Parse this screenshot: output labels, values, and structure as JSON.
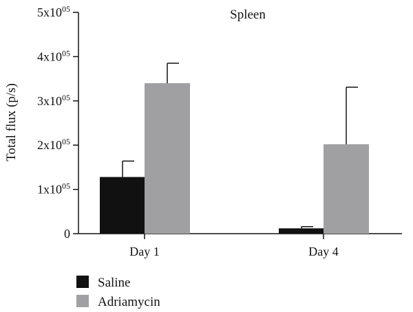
{
  "chart_data": {
    "type": "bar",
    "title": "Spleen",
    "xlabel": "",
    "ylabel": "Total flux (p/s)",
    "categories": [
      "Day 1",
      "Day 4"
    ],
    "ylim": [
      0,
      500000
    ],
    "yticks": [
      {
        "value": 0,
        "label": "0"
      },
      {
        "value": 100000,
        "base": "1x10",
        "exp": "05"
      },
      {
        "value": 200000,
        "base": "2x10",
        "exp": "05"
      },
      {
        "value": 300000,
        "base": "3x10",
        "exp": "05"
      },
      {
        "value": 400000,
        "base": "4x10",
        "exp": "05"
      },
      {
        "value": 500000,
        "base": "5x10",
        "exp": "05"
      }
    ],
    "series": [
      {
        "name": "Saline",
        "color": "#111111",
        "values": [
          128000,
          12000
        ],
        "errors": [
          36000,
          4000
        ]
      },
      {
        "name": "Adriamycin",
        "color": "#a0a0a2",
        "values": [
          340000,
          202000
        ],
        "errors": [
          45000,
          129000
        ]
      }
    ],
    "grid": false,
    "legend_position": "bottom-left"
  }
}
